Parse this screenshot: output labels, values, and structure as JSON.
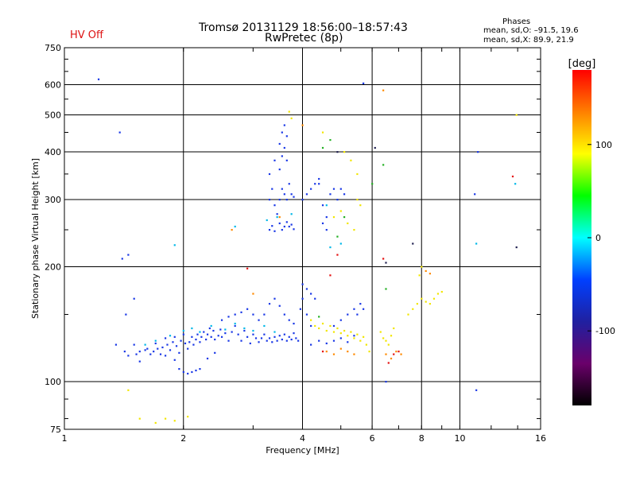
{
  "header": {
    "title_line1": "Tromsø 20131129 18:56:00–18:57:43",
    "title_line2": "RwPretec (8p)",
    "status": "HV Off",
    "status_color": "#dd1111",
    "phases_title": "Phases",
    "phases_o": "mean, sd,O: –91.5, 19.6",
    "phases_x": "mean, sd,X: 89.9, 21.9"
  },
  "chart_data": {
    "type": "scatter",
    "title": "Tromsø 20131129 18:56:00–18:57:43",
    "subtitle": "RwPretec (8p)",
    "xlabel": "Frequency [MHz]",
    "ylabel": "Stationary phase Virtual Height [km]",
    "x_scale": "log",
    "y_scale": "log",
    "xlim": [
      1,
      16
    ],
    "ylim": [
      75,
      750
    ],
    "x_ticks": [
      1,
      2,
      4,
      6,
      8,
      10,
      16
    ],
    "y_ticks": [
      75,
      100,
      200,
      300,
      400,
      500,
      600,
      750
    ],
    "x_gridlines": [
      2,
      4,
      6,
      8,
      10
    ],
    "y_gridlines": [
      100,
      200,
      300,
      400,
      500,
      600
    ],
    "grid": true,
    "colorbar": {
      "label": "[deg]",
      "range": [
        -180,
        180
      ],
      "ticks": [
        100,
        0,
        -100
      ],
      "stops": [
        "#ff0000",
        "#ff8000",
        "#ffff00",
        "#00ff00",
        "#00ffff",
        "#0040ff",
        "#2020a0",
        "#6a006a",
        "#000000"
      ]
    },
    "series": [
      {
        "color": "#1a38e6",
        "points": [
          [
            1.22,
            620
          ],
          [
            1.38,
            450
          ],
          [
            1.4,
            210
          ],
          [
            1.45,
            215
          ],
          [
            1.5,
            165
          ],
          [
            1.43,
            150
          ],
          [
            1.35,
            125
          ],
          [
            1.42,
            120
          ],
          [
            1.45,
            117
          ],
          [
            1.5,
            125
          ],
          [
            1.52,
            118
          ],
          [
            1.55,
            120
          ],
          [
            1.55,
            113
          ],
          [
            1.6,
            121
          ],
          [
            1.62,
            122
          ],
          [
            1.65,
            118
          ],
          [
            1.68,
            120
          ],
          [
            1.7,
            126
          ],
          [
            1.72,
            122
          ],
          [
            1.75,
            118
          ],
          [
            1.77,
            123
          ],
          [
            1.8,
            130
          ],
          [
            1.82,
            125
          ],
          [
            1.85,
            121
          ],
          [
            1.88,
            127
          ],
          [
            1.9,
            131
          ],
          [
            1.92,
            124
          ],
          [
            1.95,
            119
          ],
          [
            1.97,
            128
          ],
          [
            2.0,
            133
          ],
          [
            2.02,
            126
          ],
          [
            2.05,
            122
          ],
          [
            2.07,
            127
          ],
          [
            2.1,
            131
          ],
          [
            2.12,
            125
          ],
          [
            2.15,
            129
          ],
          [
            2.17,
            133
          ],
          [
            2.2,
            127
          ],
          [
            2.22,
            131
          ],
          [
            2.25,
            135
          ],
          [
            2.28,
            129
          ],
          [
            2.3,
            133
          ],
          [
            2.33,
            138
          ],
          [
            2.35,
            131
          ],
          [
            2.38,
            136
          ],
          [
            2.4,
            129
          ],
          [
            2.45,
            132
          ],
          [
            2.48,
            137
          ],
          [
            2.5,
            131
          ],
          [
            2.55,
            134
          ],
          [
            2.6,
            128
          ],
          [
            2.65,
            135
          ],
          [
            2.7,
            140
          ],
          [
            2.75,
            133
          ],
          [
            2.8,
            128
          ],
          [
            2.85,
            136
          ],
          [
            2.9,
            131
          ],
          [
            2.95,
            126
          ],
          [
            3.0,
            133
          ],
          [
            3.05,
            130
          ],
          [
            3.1,
            127
          ],
          [
            3.15,
            130
          ],
          [
            3.2,
            133
          ],
          [
            3.25,
            128
          ],
          [
            3.3,
            130
          ],
          [
            3.35,
            127
          ],
          [
            3.4,
            131
          ],
          [
            3.45,
            128
          ],
          [
            3.5,
            132
          ],
          [
            3.55,
            129
          ],
          [
            3.6,
            133
          ],
          [
            3.65,
            128
          ],
          [
            3.7,
            131
          ],
          [
            3.75,
            129
          ],
          [
            3.8,
            134
          ],
          [
            3.85,
            130
          ],
          [
            3.9,
            128
          ],
          [
            1.95,
            108
          ],
          [
            2.0,
            106
          ],
          [
            2.05,
            105
          ],
          [
            2.1,
            106
          ],
          [
            2.15,
            107
          ],
          [
            2.2,
            108
          ],
          [
            2.3,
            115
          ],
          [
            2.4,
            119
          ],
          [
            1.9,
            114
          ],
          [
            1.8,
            117
          ],
          [
            2.5,
            145
          ],
          [
            2.6,
            148
          ],
          [
            2.7,
            150
          ],
          [
            2.8,
            152
          ],
          [
            2.9,
            155
          ],
          [
            3.0,
            150
          ],
          [
            3.1,
            145
          ],
          [
            3.2,
            150
          ],
          [
            3.3,
            160
          ],
          [
            3.4,
            165
          ],
          [
            3.5,
            158
          ],
          [
            3.6,
            150
          ],
          [
            3.7,
            145
          ],
          [
            3.8,
            142
          ],
          [
            3.95,
            155
          ],
          [
            4.0,
            165
          ],
          [
            4.1,
            150
          ],
          [
            4.2,
            140
          ],
          [
            3.3,
            300
          ],
          [
            3.35,
            320
          ],
          [
            3.4,
            290
          ],
          [
            3.45,
            275
          ],
          [
            3.5,
            260
          ],
          [
            3.55,
            250
          ],
          [
            3.6,
            255
          ],
          [
            3.65,
            262
          ],
          [
            3.7,
            255
          ],
          [
            3.75,
            258
          ],
          [
            3.8,
            251
          ],
          [
            3.3,
            250
          ],
          [
            3.35,
            256
          ],
          [
            3.4,
            248
          ],
          [
            3.5,
            300
          ],
          [
            3.55,
            320
          ],
          [
            3.6,
            310
          ],
          [
            3.65,
            300
          ],
          [
            3.7,
            330
          ],
          [
            3.75,
            310
          ],
          [
            3.8,
            305
          ],
          [
            3.5,
            360
          ],
          [
            3.55,
            390
          ],
          [
            3.6,
            410
          ],
          [
            3.65,
            380
          ],
          [
            3.55,
            450
          ],
          [
            3.6,
            470
          ],
          [
            3.65,
            440
          ],
          [
            3.5,
            420
          ],
          [
            3.3,
            350
          ],
          [
            3.4,
            380
          ],
          [
            4.0,
            300
          ],
          [
            4.1,
            310
          ],
          [
            4.2,
            320
          ],
          [
            4.3,
            330
          ],
          [
            4.4,
            340
          ],
          [
            4.5,
            290
          ],
          [
            4.6,
            270
          ],
          [
            4.7,
            310
          ],
          [
            4.8,
            320
          ],
          [
            4.9,
            300
          ],
          [
            5.0,
            320
          ],
          [
            5.1,
            310
          ],
          [
            4.5,
            260
          ],
          [
            4.6,
            250
          ],
          [
            4.4,
            330
          ],
          [
            4.2,
            125
          ],
          [
            4.4,
            128
          ],
          [
            4.6,
            126
          ],
          [
            4.8,
            128
          ],
          [
            5.0,
            130
          ],
          [
            5.2,
            127
          ],
          [
            5.4,
            132
          ],
          [
            4.8,
            140
          ],
          [
            5.0,
            145
          ],
          [
            5.2,
            150
          ],
          [
            5.4,
            155
          ],
          [
            5.6,
            160
          ],
          [
            5.5,
            150
          ],
          [
            5.7,
            155
          ],
          [
            4.0,
            180
          ],
          [
            4.1,
            175
          ],
          [
            4.2,
            170
          ],
          [
            4.3,
            165
          ],
          [
            5.7,
            605
          ],
          [
            6.5,
            100
          ],
          [
            11.0,
            95
          ],
          [
            11.1,
            400
          ],
          [
            10.9,
            310
          ]
        ]
      },
      {
        "color": "#00b8e8",
        "points": [
          [
            1.6,
            125
          ],
          [
            1.7,
            128
          ],
          [
            1.85,
            132
          ],
          [
            2.0,
            136
          ],
          [
            2.1,
            138
          ],
          [
            2.2,
            135
          ],
          [
            2.35,
            140
          ],
          [
            2.55,
            137
          ],
          [
            2.7,
            142
          ],
          [
            2.85,
            138
          ],
          [
            3.0,
            136
          ],
          [
            3.2,
            140
          ],
          [
            3.4,
            135
          ],
          [
            2.7,
            255
          ],
          [
            3.25,
            265
          ],
          [
            3.45,
            270
          ],
          [
            3.75,
            275
          ],
          [
            4.6,
            290
          ],
          [
            4.7,
            225
          ],
          [
            5.0,
            230
          ],
          [
            11.0,
            230
          ],
          [
            13.8,
            330
          ],
          [
            1.9,
            228
          ]
        ]
      },
      {
        "color": "#f2e600",
        "points": [
          [
            4.2,
            145
          ],
          [
            4.3,
            140
          ],
          [
            4.4,
            138
          ],
          [
            4.5,
            142
          ],
          [
            4.6,
            136
          ],
          [
            4.7,
            140
          ],
          [
            4.8,
            135
          ],
          [
            4.9,
            138
          ],
          [
            5.0,
            134
          ],
          [
            5.1,
            136
          ],
          [
            5.2,
            132
          ],
          [
            5.3,
            135
          ],
          [
            5.4,
            130
          ],
          [
            5.5,
            133
          ],
          [
            5.6,
            128
          ],
          [
            5.7,
            131
          ],
          [
            5.8,
            125
          ],
          [
            5.9,
            120
          ],
          [
            6.3,
            135
          ],
          [
            6.4,
            130
          ],
          [
            6.5,
            128
          ],
          [
            6.6,
            125
          ],
          [
            6.7,
            132
          ],
          [
            6.8,
            138
          ],
          [
            7.4,
            150
          ],
          [
            7.6,
            155
          ],
          [
            7.8,
            160
          ],
          [
            8.0,
            165
          ],
          [
            8.2,
            162
          ],
          [
            8.4,
            160
          ],
          [
            8.6,
            165
          ],
          [
            8.8,
            170
          ],
          [
            9.0,
            172
          ],
          [
            4.8,
            270
          ],
          [
            5.0,
            280
          ],
          [
            5.2,
            260
          ],
          [
            5.4,
            250
          ],
          [
            5.5,
            300
          ],
          [
            5.6,
            290
          ],
          [
            5.1,
            400
          ],
          [
            5.3,
            380
          ],
          [
            5.5,
            350
          ],
          [
            3.7,
            510
          ],
          [
            3.75,
            490
          ],
          [
            1.55,
            80
          ],
          [
            1.7,
            78
          ],
          [
            1.8,
            80
          ],
          [
            1.9,
            79
          ],
          [
            2.05,
            81
          ],
          [
            1.45,
            95
          ],
          [
            4.5,
            450
          ],
          [
            13.9,
            500
          ],
          [
            7.9,
            190
          ],
          [
            8.0,
            200
          ]
        ]
      },
      {
        "color": "#ff8a00",
        "points": [
          [
            4.6,
            120
          ],
          [
            4.8,
            118
          ],
          [
            5.0,
            122
          ],
          [
            5.2,
            120
          ],
          [
            5.4,
            118
          ],
          [
            6.5,
            118
          ],
          [
            6.7,
            115
          ],
          [
            6.9,
            120
          ],
          [
            7.1,
            118
          ],
          [
            8.2,
            195
          ],
          [
            8.4,
            192
          ],
          [
            3.5,
            270
          ],
          [
            2.65,
            250
          ],
          [
            6.4,
            580
          ],
          [
            3.0,
            170
          ],
          [
            4.0,
            470
          ]
        ]
      },
      {
        "color": "#e41010",
        "points": [
          [
            6.6,
            112
          ],
          [
            6.8,
            118
          ],
          [
            7.0,
            120
          ],
          [
            4.7,
            190
          ],
          [
            4.9,
            215
          ],
          [
            6.4,
            210
          ],
          [
            13.6,
            345
          ],
          [
            2.9,
            198
          ],
          [
            4.5,
            120
          ]
        ]
      },
      {
        "color": "#23b023",
        "points": [
          [
            4.5,
            410
          ],
          [
            4.7,
            430
          ],
          [
            4.9,
            240
          ],
          [
            5.1,
            270
          ],
          [
            6.4,
            370
          ],
          [
            6.5,
            175
          ],
          [
            6.0,
            330
          ],
          [
            4.4,
            148
          ]
        ]
      },
      {
        "color": "#202050",
        "points": [
          [
            6.1,
            410
          ],
          [
            13.9,
            225
          ],
          [
            7.6,
            230
          ],
          [
            6.5,
            205
          ],
          [
            4.9,
            400
          ]
        ]
      }
    ]
  }
}
